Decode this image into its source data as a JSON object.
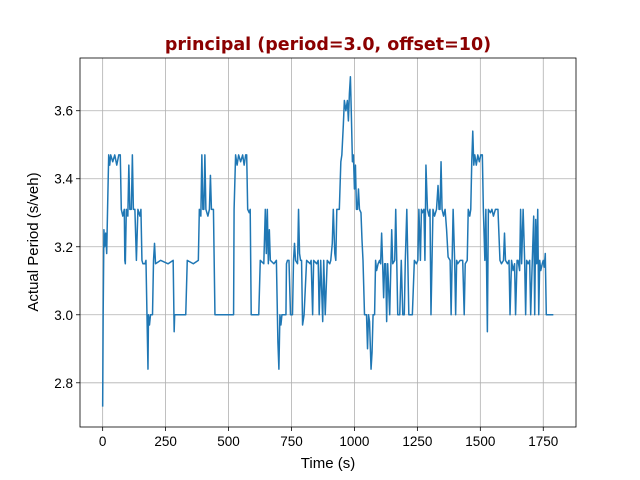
{
  "chart_data": {
    "type": "line",
    "title": "principal (period=3.0, offset=10)",
    "xlabel": "Time (s)",
    "ylabel": "Actual Period (s/veh)",
    "xlim": [
      -90,
      1880
    ],
    "ylim": [
      2.67,
      3.755
    ],
    "xticks": [
      0,
      250,
      500,
      750,
      1000,
      1250,
      1500,
      1750
    ],
    "yticks": [
      2.8,
      3.0,
      3.2,
      3.4,
      3.6
    ],
    "xtick_labels": [
      "0",
      "250",
      "500",
      "750",
      "1000",
      "1250",
      "1500",
      "1750"
    ],
    "ytick_labels": [
      "2.8",
      "3.0",
      "3.2",
      "3.4",
      "3.6"
    ],
    "grid": true,
    "colors": {
      "series": "#1f77b4",
      "title": "#8b0000",
      "grid": "#b0b0b0"
    },
    "series": [
      {
        "name": "",
        "points": [
          [
            0,
            2.73
          ],
          [
            2,
            3.0
          ],
          [
            5,
            3.25
          ],
          [
            8,
            3.2
          ],
          [
            12,
            3.24
          ],
          [
            16,
            3.18
          ],
          [
            20,
            3.33
          ],
          [
            24,
            3.47
          ],
          [
            28,
            3.44
          ],
          [
            32,
            3.47
          ],
          [
            40,
            3.45
          ],
          [
            48,
            3.47
          ],
          [
            56,
            3.44
          ],
          [
            64,
            3.47
          ],
          [
            70,
            3.47
          ],
          [
            74,
            3.31
          ],
          [
            80,
            3.29
          ],
          [
            86,
            3.31
          ],
          [
            88,
            3.16
          ],
          [
            90,
            3.15
          ],
          [
            94,
            3.31
          ],
          [
            100,
            3.29
          ],
          [
            104,
            3.44
          ],
          [
            108,
            3.31
          ],
          [
            114,
            3.31
          ],
          [
            118,
            3.47
          ],
          [
            122,
            3.31
          ],
          [
            128,
            3.31
          ],
          [
            134,
            3.16
          ],
          [
            140,
            3.31
          ],
          [
            148,
            3.29
          ],
          [
            152,
            3.31
          ],
          [
            156,
            3.16
          ],
          [
            160,
            3.15
          ],
          [
            168,
            3.15
          ],
          [
            172,
            3.16
          ],
          [
            176,
            3.0
          ],
          [
            180,
            2.84
          ],
          [
            182,
            3.0
          ],
          [
            186,
            2.97
          ],
          [
            190,
            3.0
          ],
          [
            198,
            3.0
          ],
          [
            202,
            3.16
          ],
          [
            206,
            3.21
          ],
          [
            210,
            3.15
          ],
          [
            230,
            3.16
          ],
          [
            260,
            3.15
          ],
          [
            280,
            3.16
          ],
          [
            284,
            2.95
          ],
          [
            286,
            3.0
          ],
          [
            300,
            3.0
          ],
          [
            330,
            3.0
          ],
          [
            336,
            3.16
          ],
          [
            360,
            3.15
          ],
          [
            380,
            3.16
          ],
          [
            384,
            3.31
          ],
          [
            390,
            3.29
          ],
          [
            394,
            3.47
          ],
          [
            398,
            3.31
          ],
          [
            402,
            3.31
          ],
          [
            406,
            3.47
          ],
          [
            410,
            3.31
          ],
          [
            418,
            3.29
          ],
          [
            424,
            3.31
          ],
          [
            428,
            3.41
          ],
          [
            432,
            3.31
          ],
          [
            440,
            3.31
          ],
          [
            446,
            3.0
          ],
          [
            470,
            3.0
          ],
          [
            500,
            3.0
          ],
          [
            520,
            3.0
          ],
          [
            522,
            3.31
          ],
          [
            528,
            3.47
          ],
          [
            534,
            3.44
          ],
          [
            540,
            3.47
          ],
          [
            548,
            3.45
          ],
          [
            556,
            3.47
          ],
          [
            562,
            3.44
          ],
          [
            568,
            3.47
          ],
          [
            572,
            3.47
          ],
          [
            576,
            3.31
          ],
          [
            582,
            3.3
          ],
          [
            586,
            3.31
          ],
          [
            590,
            3.0
          ],
          [
            610,
            3.0
          ],
          [
            620,
            3.0
          ],
          [
            626,
            3.16
          ],
          [
            640,
            3.15
          ],
          [
            646,
            3.31
          ],
          [
            650,
            3.18
          ],
          [
            654,
            3.31
          ],
          [
            658,
            3.15
          ],
          [
            662,
            3.25
          ],
          [
            666,
            3.16
          ],
          [
            680,
            3.15
          ],
          [
            690,
            3.16
          ],
          [
            696,
            2.92
          ],
          [
            700,
            2.84
          ],
          [
            704,
            3.0
          ],
          [
            708,
            2.97
          ],
          [
            712,
            3.0
          ],
          [
            728,
            3.0
          ],
          [
            730,
            3.15
          ],
          [
            734,
            3.16
          ],
          [
            740,
            3.16
          ],
          [
            746,
            3.0
          ],
          [
            754,
            3.0
          ],
          [
            758,
            3.16
          ],
          [
            762,
            3.21
          ],
          [
            766,
            3.16
          ],
          [
            774,
            3.15
          ],
          [
            778,
            3.31
          ],
          [
            782,
            3.18
          ],
          [
            786,
            3.16
          ],
          [
            790,
            3.16
          ],
          [
            794,
            2.97
          ],
          [
            800,
            3.0
          ],
          [
            810,
            3.16
          ],
          [
            824,
            3.15
          ],
          [
            828,
            3.16
          ],
          [
            834,
            3.0
          ],
          [
            838,
            3.16
          ],
          [
            850,
            3.15
          ],
          [
            856,
            3.16
          ],
          [
            860,
            3.0
          ],
          [
            866,
            3.16
          ],
          [
            874,
            2.98
          ],
          [
            878,
            3.16
          ],
          [
            884,
            3.0
          ],
          [
            892,
            3.16
          ],
          [
            902,
            3.15
          ],
          [
            906,
            3.16
          ],
          [
            912,
            3.21
          ],
          [
            916,
            3.31
          ],
          [
            922,
            3.18
          ],
          [
            926,
            3.16
          ],
          [
            930,
            3.31
          ],
          [
            940,
            3.31
          ],
          [
            946,
            3.45
          ],
          [
            950,
            3.47
          ],
          [
            956,
            3.56
          ],
          [
            960,
            3.63
          ],
          [
            966,
            3.6
          ],
          [
            972,
            3.63
          ],
          [
            976,
            3.57
          ],
          [
            980,
            3.65
          ],
          [
            984,
            3.7
          ],
          [
            988,
            3.58
          ],
          [
            992,
            3.45
          ],
          [
            996,
            3.47
          ],
          [
            1000,
            3.37
          ],
          [
            1004,
            3.44
          ],
          [
            1008,
            3.31
          ],
          [
            1012,
            3.31
          ],
          [
            1016,
            3.37
          ],
          [
            1020,
            3.31
          ],
          [
            1026,
            3.3
          ],
          [
            1030,
            3.22
          ],
          [
            1034,
            3.16
          ],
          [
            1040,
            3.0
          ],
          [
            1048,
            3.0
          ],
          [
            1052,
            2.9
          ],
          [
            1056,
            3.0
          ],
          [
            1060,
            2.98
          ],
          [
            1066,
            2.84
          ],
          [
            1070,
            2.89
          ],
          [
            1074,
            3.0
          ],
          [
            1080,
            3.0
          ],
          [
            1084,
            3.16
          ],
          [
            1088,
            3.13
          ],
          [
            1094,
            3.15
          ],
          [
            1100,
            3.16
          ],
          [
            1104,
            3.15
          ],
          [
            1108,
            3.24
          ],
          [
            1112,
            3.15
          ],
          [
            1116,
            3.05
          ],
          [
            1120,
            3.15
          ],
          [
            1124,
            3.15
          ],
          [
            1128,
            2.98
          ],
          [
            1132,
            3.15
          ],
          [
            1140,
            3.0
          ],
          [
            1148,
            3.25
          ],
          [
            1152,
            3.15
          ],
          [
            1160,
            3.16
          ],
          [
            1164,
            3.31
          ],
          [
            1168,
            3.16
          ],
          [
            1172,
            3.0
          ],
          [
            1180,
            3.0
          ],
          [
            1186,
            3.16
          ],
          [
            1192,
            3.0
          ],
          [
            1198,
            3.0
          ],
          [
            1202,
            3.16
          ],
          [
            1208,
            3.31
          ],
          [
            1212,
            3.16
          ],
          [
            1216,
            3.0
          ],
          [
            1220,
            3.0
          ],
          [
            1230,
            3.0
          ],
          [
            1238,
            3.16
          ],
          [
            1246,
            3.15
          ],
          [
            1252,
            3.16
          ],
          [
            1256,
            3.31
          ],
          [
            1262,
            3.16
          ],
          [
            1266,
            3.31
          ],
          [
            1270,
            3.3
          ],
          [
            1276,
            3.31
          ],
          [
            1280,
            3.16
          ],
          [
            1284,
            3.44
          ],
          [
            1290,
            3.31
          ],
          [
            1296,
            3.29
          ],
          [
            1300,
            3.31
          ],
          [
            1304,
            3.0
          ],
          [
            1312,
            3.31
          ],
          [
            1318,
            3.29
          ],
          [
            1326,
            3.31
          ],
          [
            1332,
            3.38
          ],
          [
            1336,
            3.31
          ],
          [
            1340,
            3.31
          ],
          [
            1344,
            3.45
          ],
          [
            1348,
            3.31
          ],
          [
            1354,
            3.29
          ],
          [
            1360,
            3.31
          ],
          [
            1366,
            3.25
          ],
          [
            1372,
            3.17
          ],
          [
            1380,
            3.16
          ],
          [
            1384,
            3.0
          ],
          [
            1388,
            3.16
          ],
          [
            1392,
            3.31
          ],
          [
            1398,
            3.16
          ],
          [
            1402,
            3.0
          ],
          [
            1406,
            3.16
          ],
          [
            1410,
            3.15
          ],
          [
            1420,
            3.16
          ],
          [
            1430,
            3.16
          ],
          [
            1436,
            3.0
          ],
          [
            1440,
            3.15
          ],
          [
            1448,
            3.16
          ],
          [
            1452,
            3.31
          ],
          [
            1458,
            3.29
          ],
          [
            1462,
            3.31
          ],
          [
            1466,
            3.45
          ],
          [
            1470,
            3.54
          ],
          [
            1474,
            3.44
          ],
          [
            1478,
            3.47
          ],
          [
            1484,
            3.44
          ],
          [
            1490,
            3.47
          ],
          [
            1496,
            3.45
          ],
          [
            1502,
            3.47
          ],
          [
            1508,
            3.47
          ],
          [
            1512,
            3.31
          ],
          [
            1518,
            3.16
          ],
          [
            1522,
            3.31
          ],
          [
            1528,
            2.95
          ],
          [
            1532,
            3.31
          ],
          [
            1540,
            3.3
          ],
          [
            1546,
            3.31
          ],
          [
            1552,
            3.29
          ],
          [
            1560,
            3.31
          ],
          [
            1570,
            3.31
          ],
          [
            1578,
            3.16
          ],
          [
            1584,
            3.15
          ],
          [
            1592,
            3.16
          ],
          [
            1596,
            3.24
          ],
          [
            1600,
            3.16
          ],
          [
            1608,
            3.15
          ],
          [
            1614,
            3.16
          ],
          [
            1618,
            3.0
          ],
          [
            1624,
            3.16
          ],
          [
            1630,
            3.13
          ],
          [
            1636,
            3.15
          ],
          [
            1640,
            3.0
          ],
          [
            1646,
            3.16
          ],
          [
            1650,
            3.16
          ],
          [
            1656,
            3.13
          ],
          [
            1660,
            3.31
          ],
          [
            1664,
            3.15
          ],
          [
            1670,
            3.31
          ],
          [
            1676,
            3.16
          ],
          [
            1680,
            3.0
          ],
          [
            1684,
            3.16
          ],
          [
            1690,
            3.15
          ],
          [
            1696,
            3.16
          ],
          [
            1700,
            3.0
          ],
          [
            1706,
            3.15
          ],
          [
            1712,
            3.29
          ],
          [
            1716,
            3.0
          ],
          [
            1720,
            3.28
          ],
          [
            1724,
            3.15
          ],
          [
            1728,
            3.31
          ],
          [
            1732,
            3.0
          ],
          [
            1736,
            3.16
          ],
          [
            1740,
            3.13
          ],
          [
            1746,
            3.15
          ],
          [
            1750,
            3.16
          ],
          [
            1754,
            3.14
          ],
          [
            1758,
            3.18
          ],
          [
            1762,
            3.0
          ],
          [
            1770,
            3.0
          ],
          [
            1790,
            3.0
          ]
        ]
      }
    ]
  }
}
